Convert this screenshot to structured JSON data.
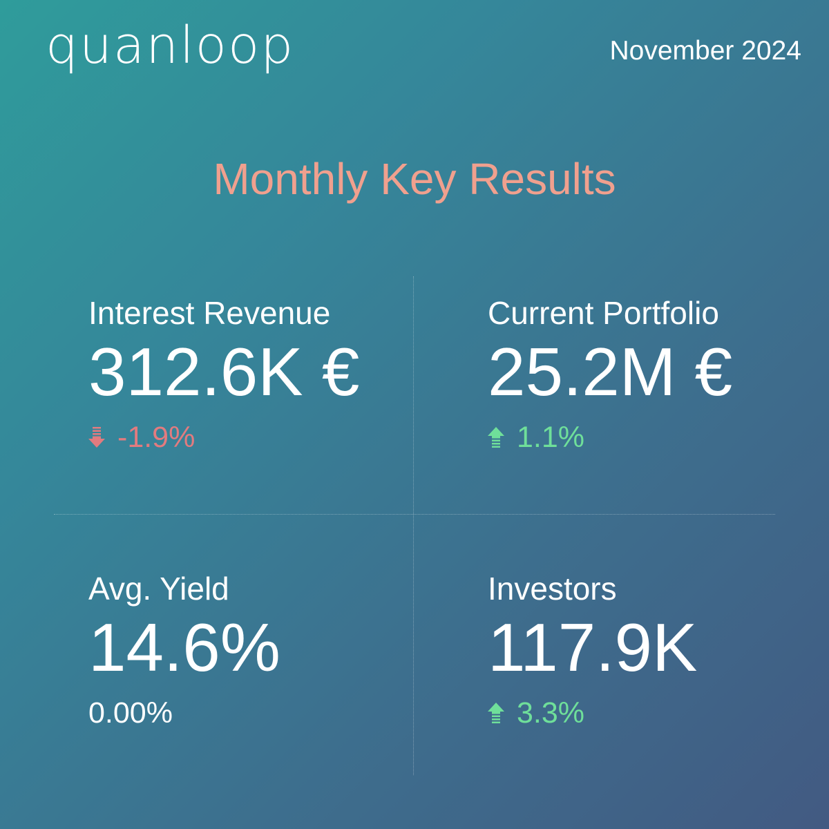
{
  "brand": {
    "logo_text": "quanloop"
  },
  "header": {
    "date": "November 2024"
  },
  "title": "Monthly Key Results",
  "colors": {
    "title": "#f0a08e",
    "negative": "#e27b7f",
    "positive": "#6fdf9a",
    "neutral": "#ffffff"
  },
  "metrics": [
    {
      "label": "Interest Revenue",
      "value": "312.6K €",
      "change": "-1.9%",
      "trend": "down",
      "icon": "arrow-down-icon"
    },
    {
      "label": "Current Portfolio",
      "value": "25.2M €",
      "change": "1.1%",
      "trend": "up",
      "icon": "arrow-up-icon"
    },
    {
      "label": "Avg. Yield",
      "value": "14.6%",
      "change": "0.00%",
      "trend": "neutral",
      "icon": ""
    },
    {
      "label": "Investors",
      "value": "117.9K",
      "change": "3.3%",
      "trend": "up",
      "icon": "arrow-up-icon"
    }
  ]
}
